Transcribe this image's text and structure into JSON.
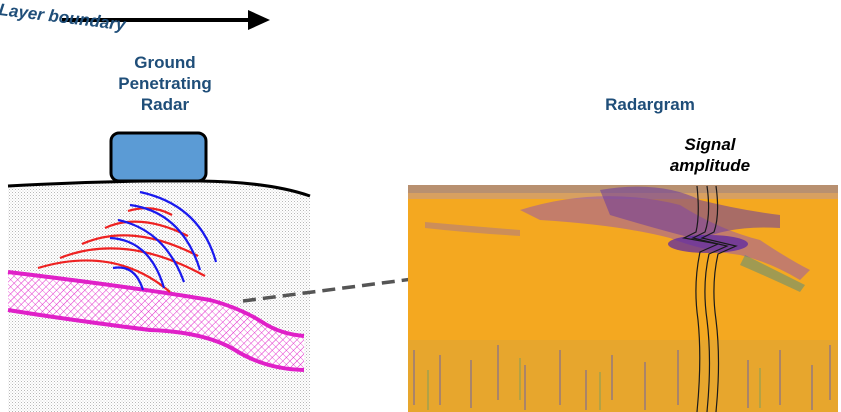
{
  "labels": {
    "gpr": [
      "Ground",
      "Penetrating",
      "Radar"
    ],
    "radargram": "Radargram",
    "signal": [
      "Signal",
      "amplitude"
    ],
    "layer": "Layer boundary"
  },
  "colors": {
    "title": "#1f4e79",
    "device": "#5b9bd5",
    "layer": "#e020c8",
    "wave_red": "#ee2222",
    "wave_blue": "#1a1aee",
    "radargram_bg": "#f4a820",
    "arrow": "#555555"
  },
  "icons": [
    "direction-arrow-icon",
    "gpr-device-icon",
    "dashed-arrow-icon"
  ]
}
